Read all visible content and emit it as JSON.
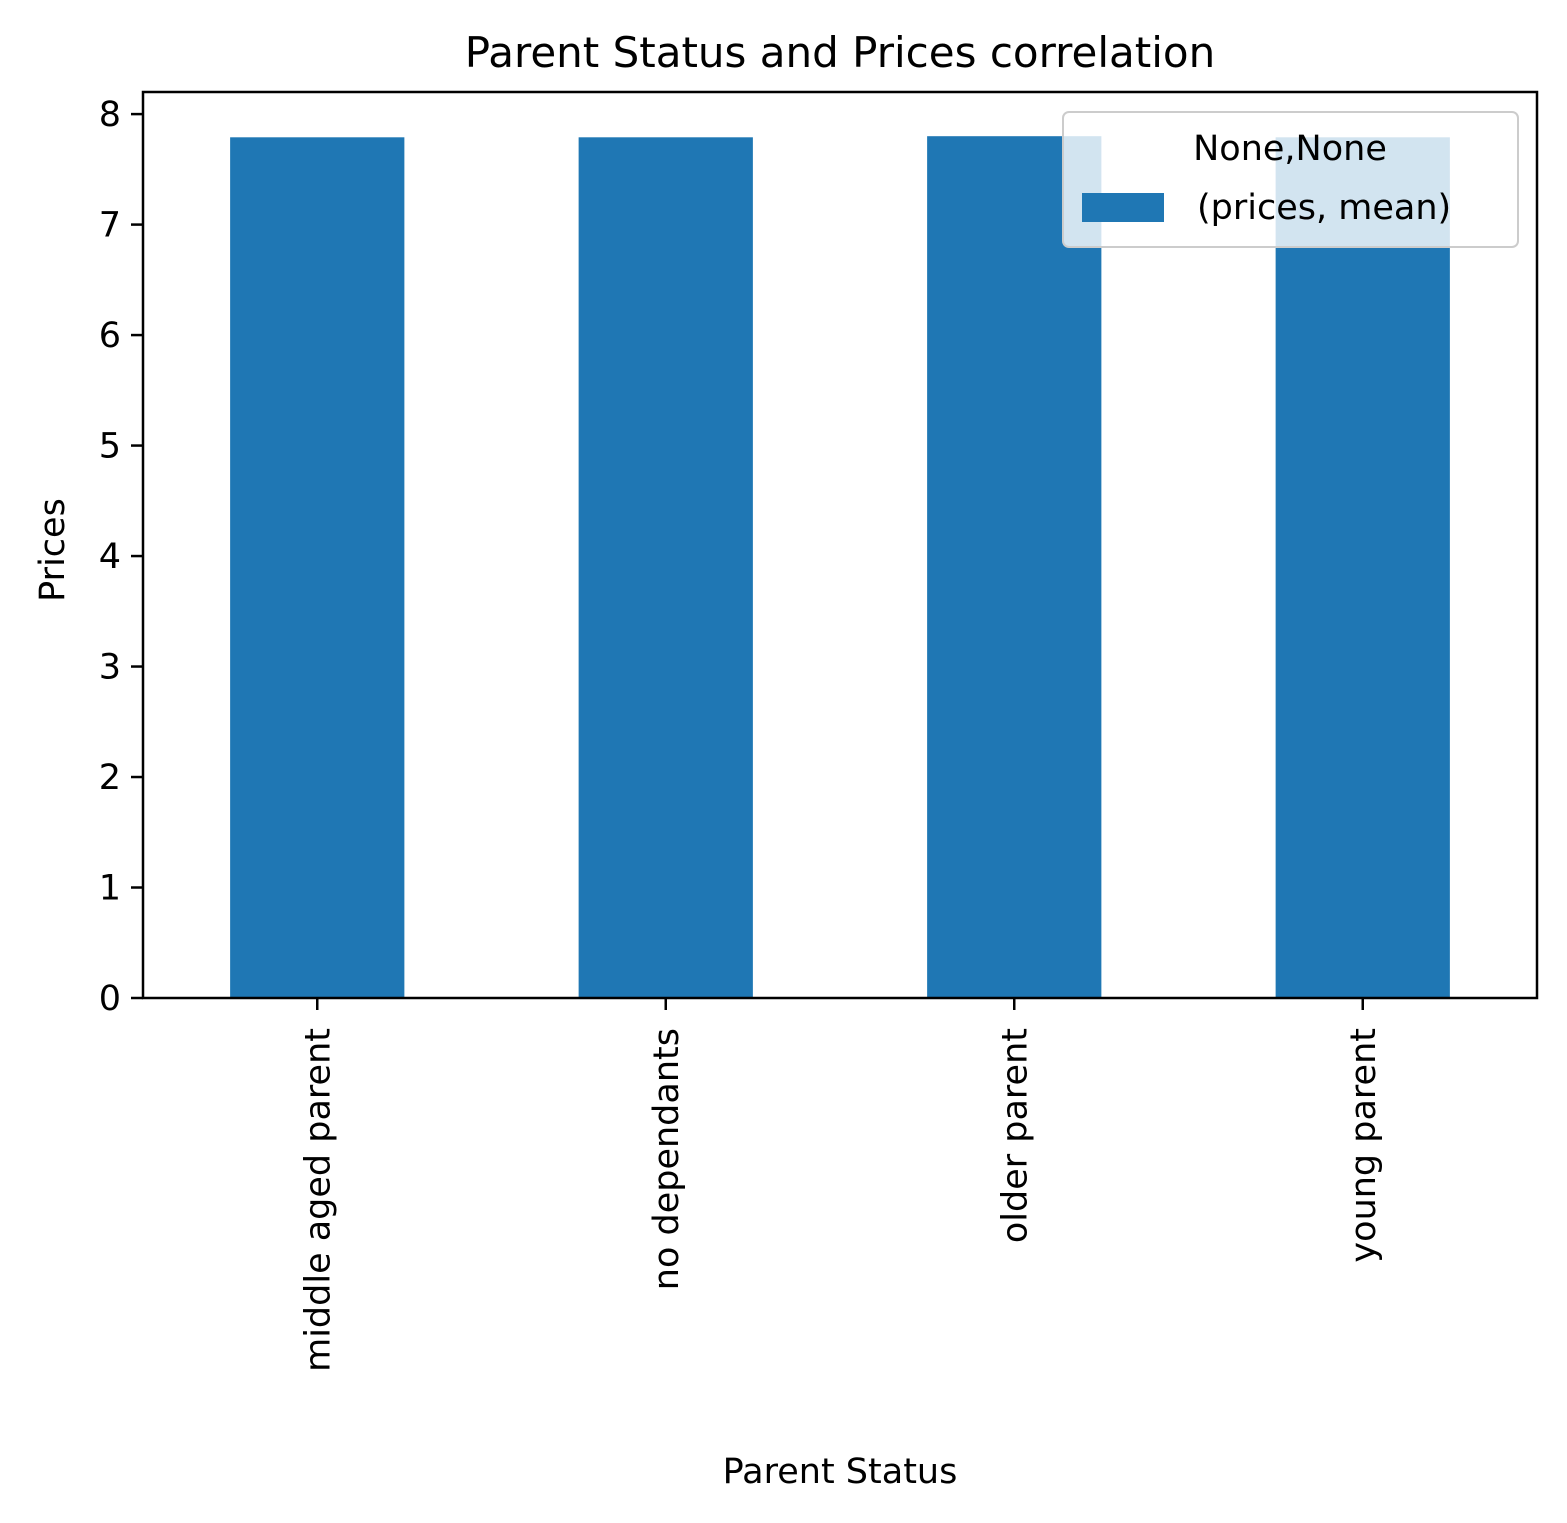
{
  "chart_data": {
    "type": "bar",
    "title": "Parent Status and Prices correlation",
    "xlabel": "Parent Status",
    "ylabel": "Prices",
    "categories": [
      "middle aged parent",
      "no dependants",
      "older parent",
      "young parent"
    ],
    "series": [
      {
        "name": "(prices, mean)",
        "values": [
          7.79,
          7.79,
          7.8,
          7.79
        ]
      }
    ],
    "ylim": [
      0,
      8.2
    ],
    "yticks": [
      "0",
      "1",
      "2",
      "3",
      "4",
      "5",
      "6",
      "7",
      "8"
    ],
    "legend": {
      "title": "None,None",
      "placement": "top-right"
    },
    "grid": false,
    "bar_color": "#1f77b4"
  }
}
